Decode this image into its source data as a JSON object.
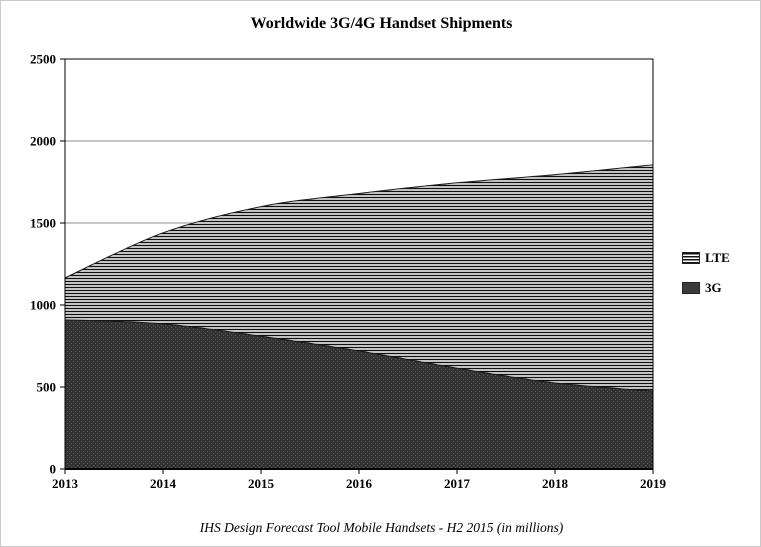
{
  "page": {
    "title": "Worldwide 3G/4G Handset Shipments",
    "caption": "IHS Design Forecast Tool Mobile Handsets - H2 2015 (in millions)"
  },
  "legend": {
    "items": [
      {
        "label": "LTE",
        "swatch": "horizontal-stripes"
      },
      {
        "label": "3G",
        "swatch": "solid-dark"
      }
    ]
  },
  "chart_data": {
    "type": "area",
    "stacked": true,
    "title": "Worldwide 3G/4G Handset Shipments",
    "subtitle": "IHS Design Forecast Tool Mobile Handsets - H2 2015 (in millions)",
    "xlabel": "",
    "ylabel": "",
    "x": [
      2013,
      2014,
      2015,
      2016,
      2017,
      2018,
      2019
    ],
    "series": [
      {
        "name": "3G",
        "values": [
          910,
          885,
          810,
          720,
          615,
          525,
          475
        ],
        "color": "#3a3a3a",
        "pattern": "solid-dark"
      },
      {
        "name": "LTE",
        "values": [
          255,
          555,
          790,
          960,
          1130,
          1270,
          1380
        ],
        "color": "#101010",
        "pattern": "horizontal-stripes"
      }
    ],
    "totals": [
      1165,
      1440,
      1600,
      1680,
      1745,
      1795,
      1855
    ],
    "ylim": [
      0,
      2500
    ],
    "yticks": [
      0,
      500,
      1000,
      1500,
      2000,
      2500
    ],
    "xticks": [
      "2013",
      "2014",
      "2015",
      "2016",
      "2017",
      "2018",
      "2019"
    ],
    "grid": "horizontal",
    "legend_position": "right",
    "units": "millions"
  }
}
